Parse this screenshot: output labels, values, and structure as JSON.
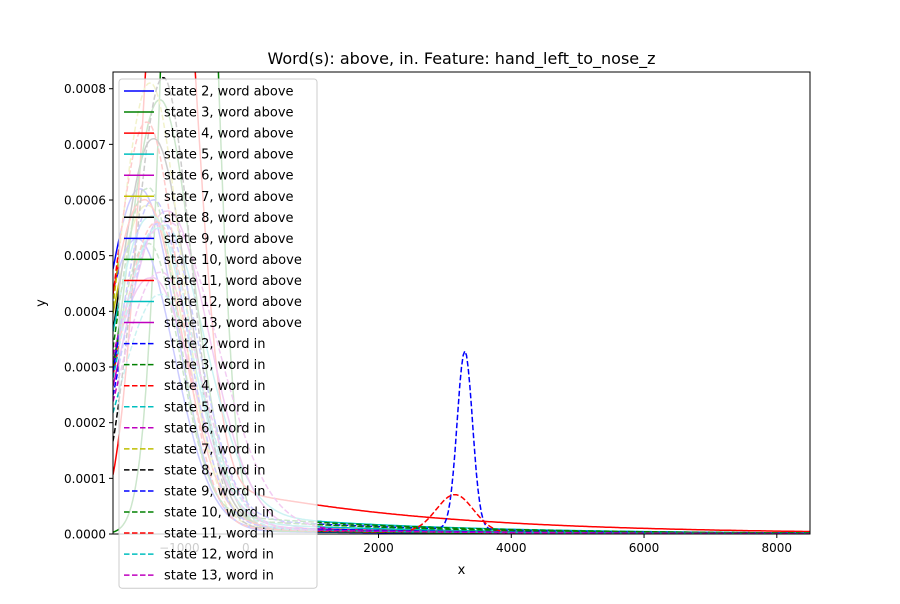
{
  "chart_data": {
    "type": "line",
    "title": "Word(s): above, in. Feature: hand_left_to_nose_z",
    "xlabel": "x",
    "ylabel": "y",
    "xlim": [
      -2000,
      8500
    ],
    "ylim": [
      0,
      0.00083
    ],
    "x_ticks": [
      {
        "value": -1000,
        "label": "−1000"
      },
      {
        "value": 0,
        "label": "0"
      },
      {
        "value": 2000,
        "label": "2000"
      },
      {
        "value": 4000,
        "label": "4000"
      },
      {
        "value": 6000,
        "label": "6000"
      },
      {
        "value": 8000,
        "label": "8000"
      }
    ],
    "y_ticks": [
      {
        "value": 0,
        "label": "0.0000"
      },
      {
        "value": 0.0001,
        "label": "0.0001"
      },
      {
        "value": 0.0002,
        "label": "0.0002"
      },
      {
        "value": 0.0003,
        "label": "0.0003"
      },
      {
        "value": 0.0004,
        "label": "0.0004"
      },
      {
        "value": 0.0005,
        "label": "0.0005"
      },
      {
        "value": 0.0006,
        "label": "0.0006"
      },
      {
        "value": 0.0007,
        "label": "0.0007"
      },
      {
        "value": 0.0008,
        "label": "0.0008"
      }
    ],
    "grid": false,
    "legend_position": "upper-left",
    "series": [
      {
        "name": "state 2, word above",
        "color": "#0000ff",
        "dash": "solid",
        "peak_x": -1600,
        "peak_y": 0.00062,
        "width": 550,
        "tail": 8e-06,
        "tail_scale": 3000
      },
      {
        "name": "state 3, word above",
        "color": "#008000",
        "dash": "solid",
        "peak_x": -850,
        "peak_y": 0.0021,
        "width": 320,
        "tail": 8e-06,
        "tail_scale": 3000
      },
      {
        "name": "state 4, word above",
        "color": "#ff0000",
        "dash": "solid",
        "peak_x": -1150,
        "peak_y": 0.0013,
        "width": 380,
        "tail": 0.00011,
        "tail_scale": 3000
      },
      {
        "name": "state 5, word above",
        "color": "#00bfbf",
        "dash": "solid",
        "peak_x": -1300,
        "peak_y": 0.00055,
        "width": 650,
        "tail": 5e-05,
        "tail_scale": 3000
      },
      {
        "name": "state 6, word above",
        "color": "#bf00bf",
        "dash": "solid",
        "peak_x": -1200,
        "peak_y": 0.00058,
        "width": 640,
        "tail": 1.5e-05,
        "tail_scale": 3000
      },
      {
        "name": "state 7, word above",
        "color": "#bfbf00",
        "dash": "solid",
        "peak_x": -1500,
        "peak_y": 0.00059,
        "width": 560,
        "tail": 1.8e-05,
        "tail_scale": 3000
      },
      {
        "name": "state 8, word above",
        "color": "#000000",
        "dash": "solid",
        "peak_x": -1400,
        "peak_y": 0.00071,
        "width": 520,
        "tail": 1.8e-05,
        "tail_scale": 3000
      },
      {
        "name": "state 9, word above",
        "color": "#0000ff",
        "dash": "solid",
        "peak_x": -1650,
        "peak_y": 0.00053,
        "width": 560,
        "tail": 1.5e-05,
        "tail_scale": 3000
      },
      {
        "name": "state 10, word above",
        "color": "#008000",
        "dash": "solid",
        "peak_x": -1300,
        "peak_y": 0.00078,
        "width": 500,
        "tail": 1.2e-05,
        "tail_scale": 3000
      },
      {
        "name": "state 11, word above",
        "color": "#ff0000",
        "dash": "solid",
        "peak_x": -1550,
        "peak_y": 0.0006,
        "width": 560,
        "tail": 2.2e-05,
        "tail_scale": 3000
      },
      {
        "name": "state 12, word above",
        "color": "#00bfbf",
        "dash": "solid",
        "peak_x": -1450,
        "peak_y": 0.00057,
        "width": 580,
        "tail": 3e-05,
        "tail_scale": 3000
      },
      {
        "name": "state 13, word above",
        "color": "#bf00bf",
        "dash": "solid",
        "peak_x": -1450,
        "peak_y": 0.00046,
        "width": 620,
        "tail": 2e-05,
        "tail_scale": 3000
      },
      {
        "name": "state 2, word in",
        "color": "#0000ff",
        "dash": "dashed",
        "peak_x": -1300,
        "peak_y": 0.00056,
        "width": 550,
        "tail": 4e-05,
        "tail_scale": 3000,
        "bump_x": 3300,
        "bump_y": 0.00032,
        "bump_w": 115
      },
      {
        "name": "state 3, word in",
        "color": "#008000",
        "dash": "dashed",
        "peak_x": -1500,
        "peak_y": 0.00052,
        "width": 480,
        "tail": 4e-05,
        "tail_scale": 3000
      },
      {
        "name": "state 4, word in",
        "color": "#ff0000",
        "dash": "dashed",
        "peak_x": -1350,
        "peak_y": 0.00056,
        "width": 560,
        "tail": 1.2e-05,
        "tail_scale": 3000,
        "bump_x": 3150,
        "bump_y": 6.8e-05,
        "bump_w": 280
      },
      {
        "name": "state 5, word in",
        "color": "#00bfbf",
        "dash": "dashed",
        "peak_x": -1300,
        "peak_y": 0.00043,
        "width": 600,
        "tail": 1.5e-05,
        "tail_scale": 3000
      },
      {
        "name": "state 6, word in",
        "color": "#bf00bf",
        "dash": "dashed",
        "peak_x": -1200,
        "peak_y": 0.00056,
        "width": 760,
        "tail": 1.5e-05,
        "tail_scale": 3000
      },
      {
        "name": "state 7, word in",
        "color": "#bfbf00",
        "dash": "dashed",
        "peak_x": -1450,
        "peak_y": 0.00081,
        "width": 470,
        "tail": 2e-05,
        "tail_scale": 3000
      },
      {
        "name": "state 8, word in",
        "color": "#000000",
        "dash": "dashed",
        "peak_x": -1250,
        "peak_y": 0.00082,
        "width": 420,
        "tail": 1.5e-05,
        "tail_scale": 3000
      },
      {
        "name": "state 9, word in",
        "color": "#0000ff",
        "dash": "dashed",
        "peak_x": -1400,
        "peak_y": 0.0006,
        "width": 500,
        "tail": 2e-05,
        "tail_scale": 3000
      },
      {
        "name": "state 10, word in",
        "color": "#008000",
        "dash": "dashed",
        "peak_x": -1500,
        "peak_y": 0.00062,
        "width": 450,
        "tail": 5e-05,
        "tail_scale": 3000
      },
      {
        "name": "state 11, word in",
        "color": "#ff0000",
        "dash": "dashed",
        "peak_x": -1500,
        "peak_y": 0.00074,
        "width": 480,
        "tail": 1.5e-05,
        "tail_scale": 3000
      },
      {
        "name": "state 12, word in",
        "color": "#00bfbf",
        "dash": "dashed",
        "peak_x": -1350,
        "peak_y": 0.00055,
        "width": 560,
        "tail": 1.5e-05,
        "tail_scale": 3000
      },
      {
        "name": "state 13, word in",
        "color": "#bf00bf",
        "dash": "dashed",
        "peak_x": -1300,
        "peak_y": 0.00047,
        "width": 600,
        "tail": 1.5e-05,
        "tail_scale": 3000
      }
    ]
  }
}
